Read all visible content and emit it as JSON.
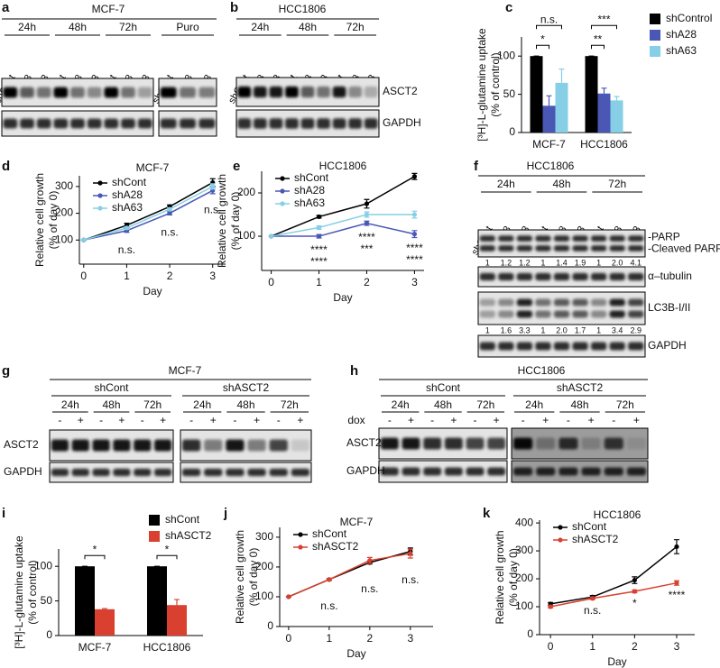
{
  "blots": [
    {
      "panel": "a",
      "title": "MCF-7",
      "groups": [
        {
          "label": "24h",
          "lanes": [
            "shCont",
            "shA28",
            "shA63"
          ]
        },
        {
          "label": "48h",
          "lanes": [
            "shCont",
            "shA28",
            "shA63"
          ]
        },
        {
          "label": "72h",
          "lanes": [
            "shCont",
            "shA28",
            "shA63"
          ]
        },
        {
          "label": "Puro",
          "lanes": [
            "shCont",
            "shA28",
            "shA63"
          ]
        }
      ]
    },
    {
      "panel": "b",
      "title": "HCC1806",
      "groups": [
        {
          "label": "24h",
          "lanes": [
            "shCont",
            "shA28",
            "shA63"
          ]
        },
        {
          "label": "48h",
          "lanes": [
            "shCont",
            "shA28",
            "shA63"
          ]
        },
        {
          "label": "72h",
          "lanes": [
            "shCont",
            "shA28",
            "shA63"
          ]
        }
      ],
      "rows": [
        {
          "labels": [
            "ASCT2"
          ]
        },
        {
          "labels": [
            "GAPDH"
          ]
        }
      ]
    },
    {
      "panel": "f",
      "title": "HCC1806",
      "groups": [
        {
          "label": "24h",
          "lanes": [
            "shCont",
            "shA28",
            "shA63"
          ]
        },
        {
          "label": "48h",
          "lanes": [
            "shCont",
            "shA28",
            "shA63"
          ]
        },
        {
          "label": "72h",
          "lanes": [
            "shCont",
            "shA28",
            "shA63"
          ]
        }
      ],
      "rows": [
        {
          "labels": [
            "-PARP",
            "-Cleaved PARP"
          ],
          "ratios": [
            "1",
            "1.2",
            "1.2",
            "1",
            "1.4",
            "1.9",
            "1",
            "2.0",
            "4.1"
          ]
        },
        {
          "labels": [
            "α–tubulin"
          ]
        },
        {
          "labels": [
            "LC3B-I/II"
          ],
          "ratios": [
            "1",
            "1.6",
            "3.3",
            "1",
            "2.0",
            "1.7",
            "1",
            "3.4",
            "2.9"
          ]
        },
        {
          "labels": [
            "GAPDH"
          ]
        }
      ]
    },
    {
      "panel": "g",
      "title": "MCF-7",
      "conditions": [
        "shCont",
        "shASCT2"
      ],
      "groups": [
        {
          "label": "24h",
          "lanes": [
            "-",
            "+"
          ]
        },
        {
          "label": "48h",
          "lanes": [
            "-",
            "+"
          ]
        },
        {
          "label": "72h",
          "lanes": [
            "-",
            "+"
          ]
        },
        {
          "label": "24h",
          "lanes": [
            "-",
            "+"
          ]
        },
        {
          "label": "48h",
          "lanes": [
            "-",
            "+"
          ]
        },
        {
          "label": "72h",
          "lanes": [
            "-",
            "+"
          ]
        }
      ],
      "rows": [
        {
          "labels": [
            "ASCT2"
          ]
        },
        {
          "labels": [
            "GAPDH"
          ]
        }
      ]
    },
    {
      "panel": "h",
      "title": "HCC1806",
      "conditions": [
        "shCont",
        "shASCT2"
      ],
      "lane_label": "dox",
      "groups": [
        {
          "label": "24h",
          "lanes": [
            "-",
            "+"
          ]
        },
        {
          "label": "48h",
          "lanes": [
            "-",
            "+"
          ]
        },
        {
          "label": "72h",
          "lanes": [
            "-",
            "+"
          ]
        },
        {
          "label": "24h",
          "lanes": [
            "-",
            "+"
          ]
        },
        {
          "label": "48h",
          "lanes": [
            "-",
            "+"
          ]
        },
        {
          "label": "72h",
          "lanes": [
            "-",
            "+"
          ]
        }
      ],
      "rows": [
        {
          "labels": [
            "ASCT2"
          ]
        },
        {
          "labels": [
            "GAPDH"
          ]
        }
      ]
    }
  ],
  "chart_data": [
    {
      "panel": "c",
      "type": "bar",
      "ylabel": [
        "[³H]-L-glutamine uptake",
        "(% of control)"
      ],
      "categories": [
        "MCF-7",
        "HCC1806"
      ],
      "series": [
        {
          "name": "shControl",
          "color": "#000000",
          "values": [
            100,
            100
          ],
          "errors": [
            0,
            0
          ]
        },
        {
          "name": "shA28",
          "color": "#4a57b5",
          "values": [
            35,
            51
          ],
          "errors": [
            13,
            7
          ]
        },
        {
          "name": "shA63",
          "color": "#86cfe6",
          "values": [
            65,
            42
          ],
          "errors": [
            18,
            5
          ]
        }
      ],
      "ylim": [
        0,
        125
      ],
      "yticks": [
        0,
        50,
        100
      ],
      "legend": "right",
      "annotations": [
        {
          "text": "*",
          "category": 0,
          "series": [
            0,
            1
          ]
        },
        {
          "text": "n.s.",
          "category": 0,
          "series": [
            0,
            2
          ]
        },
        {
          "text": "**",
          "category": 1,
          "series": [
            0,
            1
          ]
        },
        {
          "text": "***",
          "category": 1,
          "series": [
            0,
            2
          ]
        }
      ]
    },
    {
      "panel": "d",
      "type": "line",
      "title": "MCF-7",
      "xlabel": "Day",
      "ylabel": [
        "Relative cell growth",
        "(% of day 0)"
      ],
      "x": [
        0,
        1,
        2,
        3
      ],
      "xlim": [
        -0.1,
        3.3
      ],
      "xticks": [
        0,
        1,
        2,
        3
      ],
      "ylim": [
        10,
        340
      ],
      "yticks": [
        100,
        200,
        300
      ],
      "legend": "upper left",
      "series": [
        {
          "name": "shCont",
          "color": "#000000",
          "values": [
            100,
            155,
            225,
            315
          ],
          "errors": [
            0,
            8,
            6,
            14
          ]
        },
        {
          "name": "shA28",
          "color": "#4a57b5",
          "values": [
            100,
            135,
            200,
            285
          ],
          "errors": [
            0,
            6,
            6,
            12
          ]
        },
        {
          "name": "shA63",
          "color": "#86cfe6",
          "values": [
            100,
            145,
            215,
            300
          ],
          "errors": [
            0,
            5,
            5,
            10
          ]
        }
      ],
      "annotations": [
        {
          "text": "n.s.",
          "x": 1
        },
        {
          "text": "n.s.",
          "x": 2
        },
        {
          "text": "n.s.",
          "x": 3
        }
      ]
    },
    {
      "panel": "e",
      "type": "line",
      "title": "HCC1806",
      "xlabel": "Day",
      "ylabel": [
        "Relative cell growth",
        "(% of day 0)"
      ],
      "x": [
        0,
        1,
        2,
        3
      ],
      "xlim": [
        -0.2,
        3.2
      ],
      "xticks": [
        0,
        1,
        2,
        3
      ],
      "ylim": [
        21,
        250
      ],
      "yticks": [
        100,
        200
      ],
      "legend": "upper left",
      "series": [
        {
          "name": "shCont",
          "color": "#000000",
          "values": [
            100,
            145,
            175,
            238
          ],
          "errors": [
            0,
            3,
            10,
            7
          ]
        },
        {
          "name": "shA28",
          "color": "#4a57b5",
          "values": [
            100,
            100,
            130,
            105
          ],
          "errors": [
            0,
            4,
            5,
            8
          ]
        },
        {
          "name": "shA63",
          "color": "#86cfe6",
          "values": [
            100,
            120,
            150,
            150
          ],
          "errors": [
            0,
            4,
            6,
            8
          ]
        }
      ],
      "annotations": [
        {
          "text": "****",
          "x": 1
        },
        {
          "text": "****",
          "x": 1
        },
        {
          "text": "****",
          "x": 2
        },
        {
          "text": "***",
          "x": 2
        },
        {
          "text": "****",
          "x": 3
        },
        {
          "text": "****",
          "x": 3
        }
      ]
    },
    {
      "panel": "i",
      "type": "bar",
      "ylabel": [
        "[³H]-L-glutamine uptake",
        "(% of control)"
      ],
      "categories": [
        "MCF-7",
        "HCC1806"
      ],
      "series": [
        {
          "name": "shCont",
          "color": "#000000",
          "values": [
            100,
            100
          ],
          "errors": [
            0,
            0
          ]
        },
        {
          "name": "shASCT2",
          "color": "#d9402f",
          "values": [
            38,
            44
          ],
          "errors": [
            1,
            8
          ]
        }
      ],
      "ylim": [
        0,
        125
      ],
      "yticks": [
        0,
        50,
        100
      ],
      "legend": "upper right",
      "annotations": [
        {
          "text": "*",
          "category": 0,
          "series": [
            0,
            1
          ]
        },
        {
          "text": "*",
          "category": 1,
          "series": [
            0,
            1
          ]
        }
      ]
    },
    {
      "panel": "j",
      "type": "line",
      "title": "MCF-7",
      "xlabel": "Day",
      "ylabel": [
        "Relative cell growth",
        "(% of day 0)"
      ],
      "x": [
        0,
        1,
        2,
        3
      ],
      "xlim": [
        -0.22,
        3.56
      ],
      "xticks": [
        0,
        1,
        2,
        3
      ],
      "ylim": [
        0,
        333
      ],
      "yticks": [
        0,
        100,
        200,
        300
      ],
      "legend": "upper left",
      "series": [
        {
          "name": "shCont",
          "color": "#000000",
          "values": [
            100,
            158,
            215,
            252
          ],
          "errors": [
            0,
            3,
            5,
            12
          ]
        },
        {
          "name": "shASCT2",
          "color": "#d9402f",
          "values": [
            100,
            158,
            222,
            245
          ],
          "errors": [
            0,
            3,
            10,
            15
          ]
        }
      ],
      "annotations": [
        {
          "text": "n.s.",
          "x": 1
        },
        {
          "text": "n.s.",
          "x": 2
        },
        {
          "text": "n.s.",
          "x": 3
        }
      ]
    },
    {
      "panel": "k",
      "type": "line",
      "title": "HCC1806",
      "xlabel": "Day",
      "ylabel": [
        "Relative cell growth",
        "(% of day 0)"
      ],
      "x": [
        0,
        1,
        2,
        3
      ],
      "xlim": [
        -0.26,
        3.43
      ],
      "xticks": [
        0,
        1,
        2,
        3
      ],
      "ylim": [
        0,
        410
      ],
      "yticks": [
        0,
        100,
        200,
        300,
        400
      ],
      "legend": "upper left",
      "series": [
        {
          "name": "shCont",
          "color": "#000000",
          "values": [
            110,
            135,
            195,
            315
          ],
          "errors": [
            5,
            5,
            12,
            25
          ]
        },
        {
          "name": "shASCT2",
          "color": "#d9402f",
          "values": [
            100,
            130,
            155,
            185
          ],
          "errors": [
            4,
            4,
            5,
            8
          ]
        }
      ],
      "annotations": [
        {
          "text": "n.s.",
          "x": 1
        },
        {
          "text": "*",
          "x": 2
        },
        {
          "text": "****",
          "x": 3
        }
      ]
    }
  ]
}
